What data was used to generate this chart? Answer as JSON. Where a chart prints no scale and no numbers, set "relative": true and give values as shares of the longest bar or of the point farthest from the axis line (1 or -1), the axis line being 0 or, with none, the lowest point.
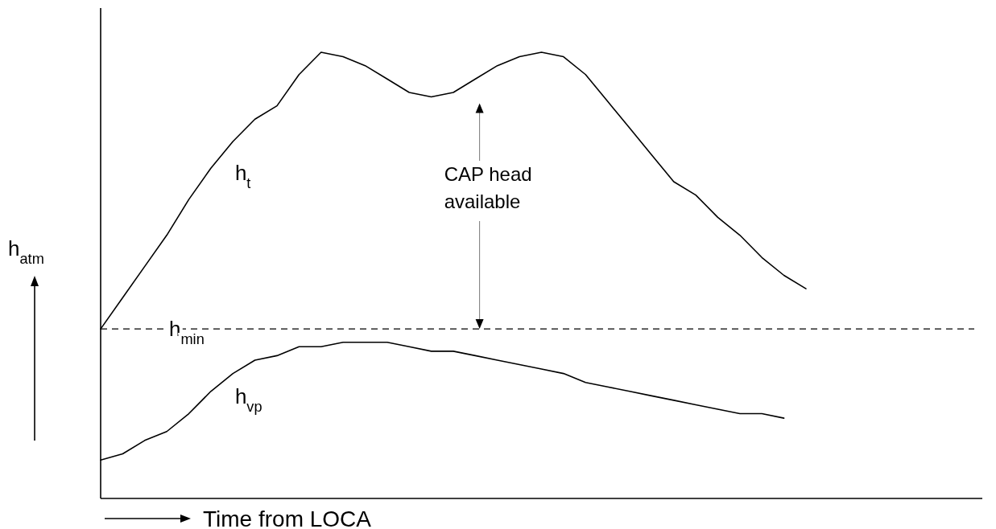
{
  "chart_data": {
    "type": "line",
    "relative": true,
    "xlabel": "Time from LOCA",
    "ylabel": "h$_{atm}$",
    "annotations": [
      "CAP head available"
    ],
    "grid": false,
    "legend": false,
    "marker": "none",
    "line_style": "solid",
    "categories": [
      null,
      null,
      null,
      null,
      null,
      null,
      null,
      null,
      null,
      null,
      null,
      null,
      null,
      null,
      null,
      null,
      null,
      null,
      null,
      null,
      null,
      null,
      null,
      null,
      null,
      null,
      null,
      null,
      null,
      null,
      null,
      null,
      null
    ],
    "series": [
      {
        "name": "h$_{t}$",
        "color": "#000000",
        "values": [
          0.38,
          0.45,
          0.52,
          0.59,
          0.67,
          0.74,
          0.8,
          0.85,
          0.88,
          0.95,
          1.0,
          0.99,
          0.97,
          0.94,
          0.91,
          0.9,
          0.91,
          0.94,
          0.97,
          0.99,
          1.0,
          0.99,
          0.95,
          0.89,
          0.83,
          0.77,
          0.71,
          0.68,
          0.63,
          0.59,
          0.54,
          0.5,
          0.47
        ]
      },
      {
        "name": "h$_{vp}$",
        "color": "#000000",
        "values": [
          0.086,
          0.1,
          0.13,
          0.15,
          0.19,
          0.24,
          0.28,
          0.31,
          0.32,
          0.34,
          0.34,
          0.35,
          0.35,
          0.35,
          0.34,
          0.33,
          0.33,
          0.32,
          0.31,
          0.3,
          0.29,
          0.28,
          0.26,
          0.25,
          0.24,
          0.23,
          0.22,
          0.21,
          0.2,
          0.19,
          0.19,
          0.18,
          null
        ]
      }
    ],
    "ref_lines": [
      {
        "axis": "y",
        "value": 0.38,
        "label": "h$_{min}$",
        "color": "#000000",
        "line_style": "dashed"
      }
    ]
  }
}
